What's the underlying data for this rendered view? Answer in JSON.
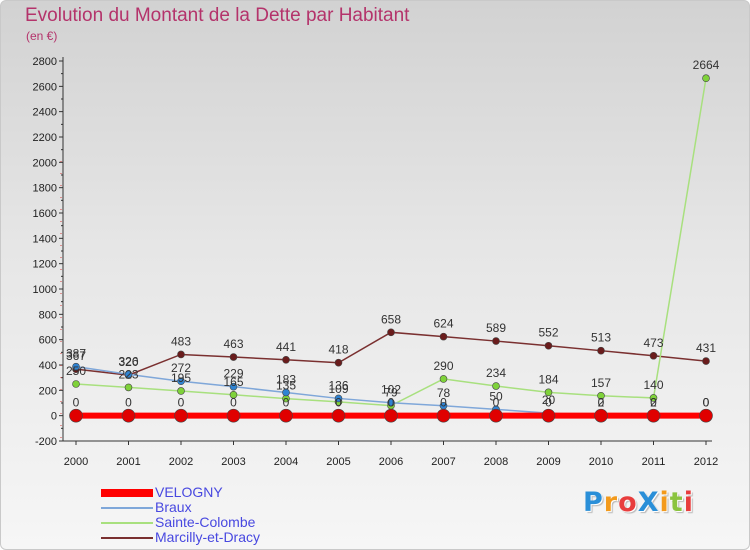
{
  "chart_data": {
    "type": "line",
    "title": "Evolution du Montant de la Dette par Habitant",
    "unit_label": "(en €)",
    "x": [
      "2000",
      "2001",
      "2002",
      "2003",
      "2004",
      "2005",
      "2006",
      "2007",
      "2008",
      "2009",
      "2010",
      "2011",
      "2012"
    ],
    "ylim": [
      -200,
      2800
    ],
    "yticks": [
      -200,
      0,
      200,
      400,
      600,
      800,
      1000,
      1200,
      1400,
      1600,
      1800,
      2000,
      2200,
      2400,
      2600,
      2800
    ],
    "grid": false,
    "legend_position": "bottom-left",
    "series": [
      {
        "name": "VELOGNY",
        "color": "#ff0000",
        "marker_color": "#e00000",
        "values": [
          0,
          0,
          0,
          0,
          0,
          0,
          0,
          0,
          0,
          0,
          0,
          0,
          0
        ],
        "labels": [
          "0",
          "0",
          "0",
          "0",
          "0",
          "0",
          "0",
          "0",
          "0",
          "0",
          "0",
          "0",
          "0"
        ]
      },
      {
        "name": "Braux",
        "color": "#7fa7d9",
        "marker_color": "#2f83d2",
        "values": [
          387,
          326,
          272,
          229,
          183,
          136,
          102,
          78,
          50,
          20,
          2,
          2,
          0
        ],
        "labels": [
          "387",
          "326",
          "272",
          "229",
          "183",
          "136",
          "102",
          "78",
          "50",
          "20",
          "2",
          "2",
          "0"
        ]
      },
      {
        "name": "Sainte-Colombe",
        "color": "#a8e07e",
        "marker_color": "#7fd23a",
        "values": [
          250,
          223,
          195,
          165,
          135,
          109,
          79,
          290,
          234,
          184,
          157,
          140,
          2664
        ],
        "labels": [
          "250",
          "223",
          "195",
          "165",
          "135",
          "109",
          "79",
          "290",
          "234",
          "184",
          "157",
          "140",
          "2664"
        ]
      },
      {
        "name": "Marcilly-et-Dracy",
        "color": "#7a3030",
        "marker_color": "#6a1c1c",
        "values": [
          367,
          320,
          483,
          463,
          441,
          418,
          658,
          624,
          589,
          552,
          513,
          473,
          431
        ],
        "labels": [
          "367",
          "320",
          "483",
          "463",
          "441",
          "418",
          "658",
          "624",
          "589",
          "552",
          "513",
          "473",
          "431"
        ]
      }
    ]
  },
  "logo": {
    "text": "ProXiti",
    "letters": [
      "P",
      "r",
      "o",
      "X",
      "i",
      "t",
      "i"
    ],
    "colors": [
      "#2a8fd8",
      "#f39a1c",
      "#e83d3d",
      "#2a8fd8",
      "#f39a1c",
      "#8bc43f",
      "#e83d3d"
    ]
  }
}
